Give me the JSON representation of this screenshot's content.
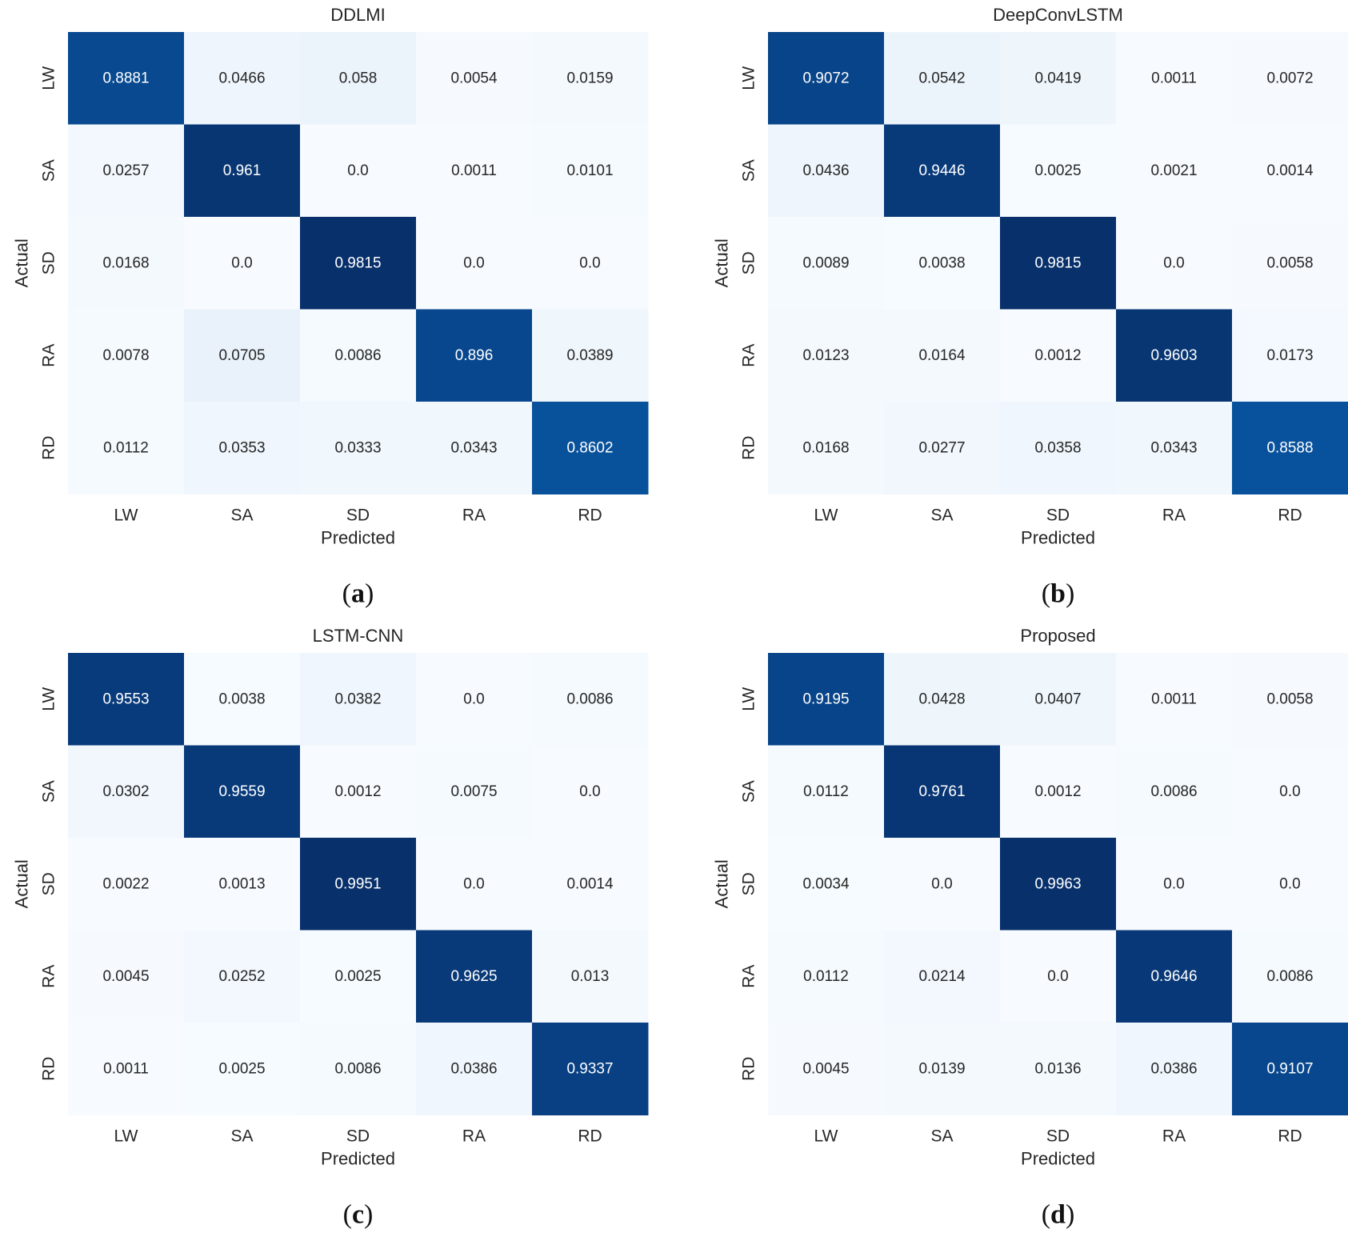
{
  "chart_data": [
    {
      "type": "heatmap",
      "title": "DDLMI",
      "panel_label": "(a)",
      "xlabel": "Predicted",
      "ylabel": "Actual",
      "x_categories": [
        "LW",
        "SA",
        "SD",
        "RA",
        "RD"
      ],
      "y_categories": [
        "LW",
        "SA",
        "SD",
        "RA",
        "RD"
      ],
      "values": [
        [
          "0.8881",
          "0.0466",
          "0.058",
          "0.0054",
          "0.0159"
        ],
        [
          "0.0257",
          "0.961",
          "0.0",
          "0.0011",
          "0.0101"
        ],
        [
          "0.0168",
          "0.0",
          "0.9815",
          "0.0",
          "0.0"
        ],
        [
          "0.0078",
          "0.0705",
          "0.0086",
          "0.896",
          "0.0389"
        ],
        [
          "0.0112",
          "0.0353",
          "0.0333",
          "0.0343",
          "0.8602"
        ]
      ],
      "colormap": "Blues",
      "colorbar": false
    },
    {
      "type": "heatmap",
      "title": "DeepConvLSTM",
      "panel_label": "(b)",
      "xlabel": "Predicted",
      "ylabel": "Actual",
      "x_categories": [
        "LW",
        "SA",
        "SD",
        "RA",
        "RD"
      ],
      "y_categories": [
        "LW",
        "SA",
        "SD",
        "RA",
        "RD"
      ],
      "values": [
        [
          "0.9072",
          "0.0542",
          "0.0419",
          "0.0011",
          "0.0072"
        ],
        [
          "0.0436",
          "0.9446",
          "0.0025",
          "0.0021",
          "0.0014"
        ],
        [
          "0.0089",
          "0.0038",
          "0.9815",
          "0.0",
          "0.0058"
        ],
        [
          "0.0123",
          "0.0164",
          "0.0012",
          "0.9603",
          "0.0173"
        ],
        [
          "0.0168",
          "0.0277",
          "0.0358",
          "0.0343",
          "0.8588"
        ]
      ],
      "colormap": "Blues",
      "colorbar": false
    },
    {
      "type": "heatmap",
      "title": "LSTM-CNN",
      "panel_label": "(c)",
      "xlabel": "Predicted",
      "ylabel": "Actual",
      "x_categories": [
        "LW",
        "SA",
        "SD",
        "RA",
        "RD"
      ],
      "y_categories": [
        "LW",
        "SA",
        "SD",
        "RA",
        "RD"
      ],
      "values": [
        [
          "0.9553",
          "0.0038",
          "0.0382",
          "0.0",
          "0.0086"
        ],
        [
          "0.0302",
          "0.9559",
          "0.0012",
          "0.0075",
          "0.0"
        ],
        [
          "0.0022",
          "0.0013",
          "0.9951",
          "0.0",
          "0.0014"
        ],
        [
          "0.0045",
          "0.0252",
          "0.0025",
          "0.9625",
          "0.013"
        ],
        [
          "0.0011",
          "0.0025",
          "0.0086",
          "0.0386",
          "0.9337"
        ]
      ],
      "colormap": "Blues",
      "colorbar": false
    },
    {
      "type": "heatmap",
      "title": "Proposed",
      "panel_label": "(d)",
      "xlabel": "Predicted",
      "ylabel": "Actual",
      "x_categories": [
        "LW",
        "SA",
        "SD",
        "RA",
        "RD"
      ],
      "y_categories": [
        "LW",
        "SA",
        "SD",
        "RA",
        "RD"
      ],
      "values": [
        [
          "0.9195",
          "0.0428",
          "0.0407",
          "0.0011",
          "0.0058"
        ],
        [
          "0.0112",
          "0.9761",
          "0.0012",
          "0.0086",
          "0.0"
        ],
        [
          "0.0034",
          "0.0",
          "0.9963",
          "0.0",
          "0.0"
        ],
        [
          "0.0112",
          "0.0214",
          "0.0",
          "0.9646",
          "0.0086"
        ],
        [
          "0.0045",
          "0.0139",
          "0.0136",
          "0.0386",
          "0.9107"
        ]
      ],
      "colormap": "Blues",
      "colorbar": false
    }
  ]
}
